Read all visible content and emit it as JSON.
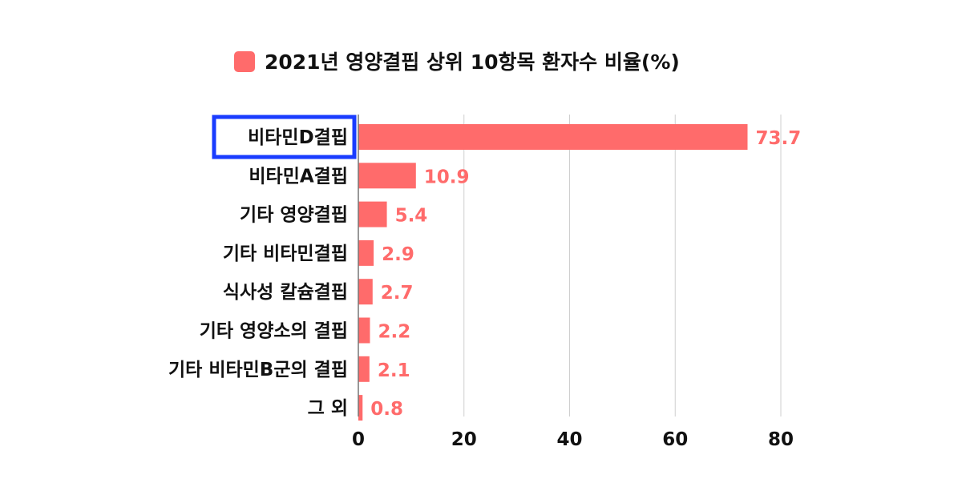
{
  "chart_data": {
    "type": "bar",
    "orientation": "horizontal",
    "title": "",
    "xlabel": "",
    "ylabel": "",
    "categories": [
      "비타민D결핍",
      "비타민A결핍",
      "기타 영양결핍",
      "기타 비타민결핍",
      "식사성 칼슘결핍",
      "기타 영양소의 결핍",
      "기타 비타민B군의 결핍",
      "그 외"
    ],
    "series": [
      {
        "name": "2021년 영양결핍 상위 10항목 환자수 비율(%)",
        "values": [
          73.7,
          10.9,
          5.4,
          2.9,
          2.7,
          2.2,
          2.1,
          0.8
        ],
        "color": "#ff6b6b"
      }
    ],
    "value_labels": [
      "73.7",
      "10.9",
      "5.4",
      "2.9",
      "2.7",
      "2.2",
      "2.1",
      "0.8"
    ],
    "xlim": [
      0,
      80
    ],
    "xticks": [
      0,
      20,
      40,
      60,
      80
    ],
    "xtick_labels": [
      "0",
      "20",
      "40",
      "60",
      "80"
    ],
    "grid": true,
    "legend_position": "top-center",
    "highlighted_category": "비타민D결핍",
    "highlight_color": "#1a3cff"
  }
}
